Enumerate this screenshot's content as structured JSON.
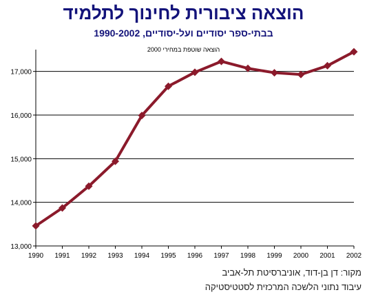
{
  "title": "הוצאה ציבורית לחינוך לתלמיד",
  "subtitle": "בבתי-ספר יסודיים ועל-יסודיים, 1990-2002",
  "note": "הוצאה שוטפת במחירי 2000",
  "source_lines": [
    "מקור: דן בן-דוד, אוניברסיטת תל-אביב",
    "עיבוד נתוני הלשכה המרכזית לסטטיסטיקה"
  ],
  "colors": {
    "title": "#13137a",
    "line": "#8b1a2b",
    "grid": "#000000"
  },
  "chart_data": {
    "type": "line",
    "x": [
      1990,
      1991,
      1992,
      1993,
      1994,
      1995,
      1996,
      1997,
      1998,
      1999,
      2000,
      2001,
      2002
    ],
    "series": [
      {
        "values": [
          13460,
          13870,
          14370,
          14940,
          15990,
          16660,
          16980,
          17230,
          17070,
          16970,
          16930,
          17130,
          17450
        ]
      }
    ],
    "ylim": [
      13000,
      17500
    ],
    "y_ticks": [
      "13,000",
      "14,000",
      "15,000",
      "16,000",
      "17,000"
    ],
    "y_tick_values": [
      13000,
      14000,
      15000,
      16000,
      17000
    ],
    "x_tick_labels": [
      "1990",
      "1991",
      "1992",
      "1993",
      "1994",
      "1995",
      "1996",
      "1997",
      "1998",
      "1999",
      "2000",
      "2001",
      "2002"
    ],
    "grid": true,
    "marker": "diamond"
  }
}
